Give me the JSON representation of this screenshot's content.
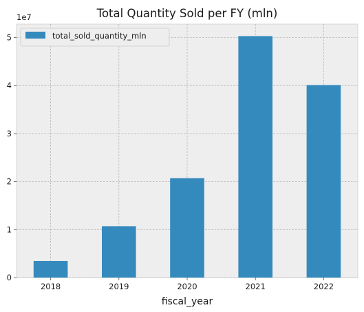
{
  "chart_data": {
    "type": "bar",
    "title": "Total Quantity Sold per FY (mln)",
    "xlabel": "fiscal_year",
    "ylabel": "",
    "categories": [
      "2018",
      "2019",
      "2020",
      "2021",
      "2022"
    ],
    "series": [
      {
        "name": "total_sold_quantity_mln",
        "values": [
          3450000,
          10700000,
          20700000,
          50300000,
          40100000
        ]
      }
    ],
    "y_ticks": [
      "0",
      "1",
      "2",
      "3",
      "4",
      "5"
    ],
    "y_offset_text": "1e7",
    "ylim": [
      0,
      52800000
    ],
    "grid": true,
    "legend_position": "top-left",
    "colors": {
      "bar": "#348abd",
      "plot_background": "#eeeeee",
      "grid": "#b2b2b2"
    }
  }
}
